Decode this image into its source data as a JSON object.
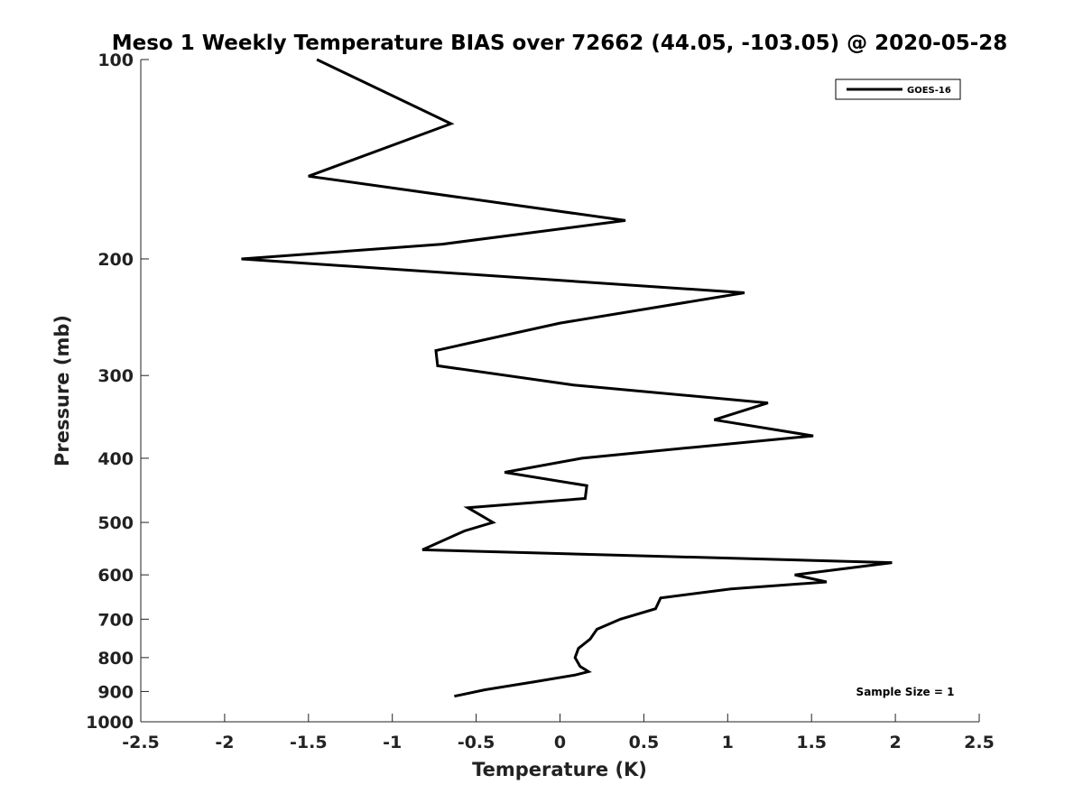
{
  "chart_data": {
    "type": "line",
    "title": "Meso 1 Weekly Temperature BIAS over 72662 (44.05, -103.05) @ 2020-05-28",
    "xlabel": "Temperature (K)",
    "ylabel": "Pressure (mb)",
    "xlim": [
      -2.5,
      2.5
    ],
    "ylim": [
      100,
      1000
    ],
    "y_scale": "log",
    "y_reversed": true,
    "x_ticks": [
      -2.5,
      -2,
      -1.5,
      -1,
      -0.5,
      0,
      0.5,
      1,
      1.5,
      2,
      2.5
    ],
    "x_tick_labels": [
      "-2.5",
      "-2",
      "-1.5",
      "-1",
      "-0.5",
      "0",
      "0.5",
      "1",
      "1.5",
      "2",
      "2.5"
    ],
    "y_ticks": [
      100,
      200,
      300,
      400,
      500,
      600,
      700,
      800,
      900,
      1000
    ],
    "y_tick_labels": [
      "100",
      "200",
      "300",
      "400",
      "500",
      "600",
      "700",
      "800",
      "900",
      "1000"
    ],
    "grid": false,
    "legend": "top-right",
    "annotation": "Sample Size = 1",
    "series": [
      {
        "name": "GOES-16",
        "color": "#000000",
        "points": [
          {
            "x": -1.45,
            "y": 100
          },
          {
            "x": -0.65,
            "y": 125
          },
          {
            "x": -1.5,
            "y": 150
          },
          {
            "x": 0.39,
            "y": 175
          },
          {
            "x": -0.7,
            "y": 190
          },
          {
            "x": -1.9,
            "y": 200
          },
          {
            "x": 1.1,
            "y": 225
          },
          {
            "x": 0.0,
            "y": 250
          },
          {
            "x": -0.74,
            "y": 275
          },
          {
            "x": -0.73,
            "y": 290
          },
          {
            "x": 0.08,
            "y": 310
          },
          {
            "x": 1.24,
            "y": 330
          },
          {
            "x": 0.92,
            "y": 350
          },
          {
            "x": 1.51,
            "y": 370
          },
          {
            "x": 0.8,
            "y": 385
          },
          {
            "x": 0.13,
            "y": 400
          },
          {
            "x": -0.33,
            "y": 420
          },
          {
            "x": 0.16,
            "y": 440
          },
          {
            "x": 0.15,
            "y": 460
          },
          {
            "x": -0.55,
            "y": 475
          },
          {
            "x": -0.4,
            "y": 500
          },
          {
            "x": -0.57,
            "y": 515
          },
          {
            "x": -0.82,
            "y": 550
          },
          {
            "x": 1.98,
            "y": 575
          },
          {
            "x": 1.4,
            "y": 600
          },
          {
            "x": 1.59,
            "y": 615
          },
          {
            "x": 1.02,
            "y": 630
          },
          {
            "x": 0.6,
            "y": 650
          },
          {
            "x": 0.57,
            "y": 675
          },
          {
            "x": 0.36,
            "y": 700
          },
          {
            "x": 0.22,
            "y": 725
          },
          {
            "x": 0.18,
            "y": 750
          },
          {
            "x": 0.11,
            "y": 775
          },
          {
            "x": 0.09,
            "y": 800
          },
          {
            "x": 0.12,
            "y": 825
          },
          {
            "x": 0.17,
            "y": 840
          },
          {
            "x": 0.09,
            "y": 850
          },
          {
            "x": -0.15,
            "y": 870
          },
          {
            "x": -0.45,
            "y": 895
          },
          {
            "x": -0.63,
            "y": 915
          }
        ]
      }
    ]
  }
}
